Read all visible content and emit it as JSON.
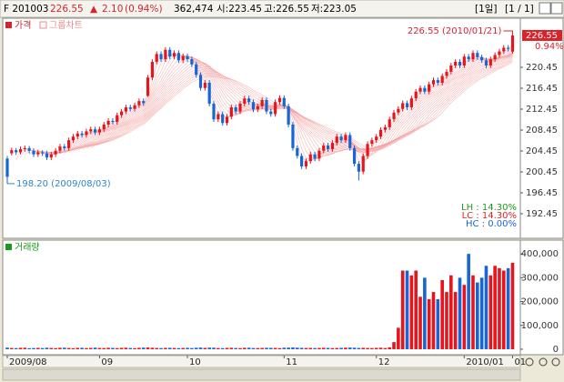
{
  "header": {
    "code": "F 201003",
    "price": "226.55",
    "change_arrow": "▲",
    "change": "2.10",
    "change_pct": "(0.94%)",
    "volume": "362,474",
    "open": "시:223.45",
    "high": "고:226.55",
    "low": "저:223.05",
    "period": "[1일]",
    "page": "[1 / 1]"
  },
  "chart_data": [
    {
      "type": "candlestick",
      "group_label": "그룹차트",
      "series": [
        {
          "name": "가격",
          "up_color": "#e8141b",
          "down_color": "#1666d6",
          "open": [
            203.0,
            204.0,
            204.6,
            204.2,
            204.8,
            205.0,
            204.5,
            203.8,
            204.2,
            204.0,
            203.2,
            203.8,
            204.5,
            205.3,
            205.0,
            206.5,
            207.2,
            207.8,
            207.5,
            208.2,
            208.6,
            208.0,
            208.6,
            209.5,
            210.2,
            210.0,
            211.3,
            212.0,
            212.8,
            212.5,
            213.2,
            214.0,
            215.0,
            218.5,
            221.5,
            223.0,
            222.0,
            223.8,
            222.5,
            223.2,
            221.8,
            222.6,
            222.0,
            221.0,
            219.0,
            216.5,
            217.5,
            213.5,
            210.5,
            211.5,
            209.8,
            211.0,
            212.8,
            212.0,
            213.5,
            214.5,
            213.8,
            212.4,
            213.0,
            214.2,
            212.0,
            211.5,
            213.8,
            214.6,
            213.0,
            209.5,
            205.0,
            203.5,
            201.5,
            202.5,
            203.8,
            203.0,
            204.5,
            205.5,
            204.8,
            206.0,
            207.2,
            206.5,
            207.5,
            205.0,
            202.0,
            200.5,
            203.5,
            205.8,
            206.5,
            207.2,
            208.5,
            209.0,
            210.5,
            211.8,
            212.5,
            213.6,
            212.8,
            214.5,
            215.8,
            216.5,
            215.8,
            217.2,
            218.0,
            217.5,
            218.8,
            219.6,
            220.8,
            221.5,
            220.8,
            222.5,
            222.0,
            223.2,
            222.4,
            221.8,
            220.8,
            222.0,
            222.8,
            223.5,
            224.2,
            223.45
          ],
          "high": [
            203.5,
            205.1,
            205.0,
            205.3,
            205.5,
            205.4,
            205.0,
            204.7,
            204.6,
            204.5,
            204.3,
            205.0,
            205.8,
            205.8,
            207.0,
            207.7,
            208.3,
            208.3,
            208.7,
            209.1,
            209.1,
            209.1,
            210.0,
            210.7,
            210.7,
            211.8,
            212.5,
            213.3,
            213.3,
            213.7,
            214.5,
            214.5,
            219.0,
            222.0,
            223.5,
            223.5,
            224.3,
            224.3,
            223.7,
            223.7,
            223.1,
            223.1,
            222.5,
            221.5,
            219.5,
            218.0,
            218.0,
            214.0,
            212.0,
            212.0,
            211.5,
            213.3,
            213.3,
            214.0,
            215.0,
            215.0,
            214.3,
            213.5,
            214.7,
            214.7,
            212.5,
            214.3,
            215.1,
            215.1,
            213.5,
            210.0,
            205.5,
            204.0,
            203.0,
            204.3,
            204.3,
            205.0,
            206.0,
            206.0,
            206.5,
            207.7,
            207.7,
            208.0,
            208.0,
            205.5,
            202.5,
            204.0,
            206.3,
            207.0,
            207.7,
            209.0,
            209.5,
            211.0,
            212.3,
            213.0,
            214.1,
            214.1,
            215.0,
            216.3,
            217.0,
            217.0,
            217.7,
            218.5,
            218.5,
            219.3,
            220.1,
            221.3,
            222.0,
            222.0,
            223.0,
            223.0,
            223.7,
            223.7,
            222.9,
            222.3,
            222.5,
            223.3,
            224.0,
            224.7,
            224.7,
            226.55
          ],
          "low": [
            198.2,
            203.6,
            203.7,
            203.8,
            204.3,
            204.0,
            203.3,
            203.3,
            203.5,
            202.7,
            202.7,
            203.3,
            204.0,
            204.5,
            204.5,
            206.0,
            206.7,
            207.0,
            207.0,
            207.7,
            207.5,
            207.5,
            208.1,
            209.0,
            209.5,
            209.5,
            210.8,
            211.5,
            212.0,
            212.0,
            212.7,
            213.1,
            214.8,
            218.0,
            221.0,
            221.5,
            221.5,
            222.0,
            222.0,
            221.3,
            221.3,
            221.5,
            220.5,
            218.5,
            216.0,
            216.0,
            213.0,
            210.0,
            210.0,
            209.3,
            209.3,
            210.5,
            211.5,
            211.5,
            213.0,
            213.3,
            211.9,
            211.9,
            212.5,
            211.5,
            211.0,
            211.0,
            213.3,
            212.5,
            209.0,
            204.5,
            203.0,
            201.0,
            201.0,
            202.0,
            202.5,
            202.5,
            204.0,
            204.3,
            204.3,
            205.5,
            206.0,
            206.0,
            204.5,
            201.5,
            198.8,
            200.0,
            203.0,
            205.3,
            206.0,
            206.7,
            208.0,
            208.5,
            210.0,
            211.3,
            212.0,
            212.3,
            212.3,
            214.0,
            215.3,
            215.3,
            215.3,
            216.7,
            217.0,
            217.0,
            218.3,
            219.1,
            220.3,
            220.3,
            220.3,
            221.5,
            221.5,
            221.9,
            221.3,
            220.3,
            220.3,
            221.5,
            222.3,
            223.0,
            223.5,
            223.05
          ],
          "close": [
            199.5,
            204.6,
            204.2,
            204.8,
            205.0,
            204.5,
            203.8,
            204.2,
            204.0,
            203.2,
            203.8,
            204.5,
            205.3,
            205.0,
            206.5,
            207.2,
            207.8,
            207.5,
            208.2,
            208.6,
            208.0,
            208.6,
            209.5,
            210.2,
            210.0,
            211.3,
            212.0,
            212.8,
            212.5,
            213.2,
            214.0,
            213.6,
            218.5,
            221.5,
            223.0,
            222.0,
            223.8,
            222.5,
            223.2,
            221.8,
            222.6,
            222.0,
            221.0,
            219.0,
            216.5,
            217.5,
            213.5,
            210.5,
            211.5,
            209.8,
            211.0,
            212.8,
            212.0,
            213.5,
            214.5,
            213.8,
            212.4,
            213.0,
            214.2,
            212.0,
            211.5,
            213.8,
            214.6,
            213.0,
            209.5,
            205.0,
            203.5,
            201.5,
            202.5,
            203.8,
            203.0,
            204.5,
            205.5,
            204.8,
            206.0,
            207.2,
            206.5,
            207.5,
            205.0,
            202.0,
            200.5,
            203.5,
            205.8,
            206.5,
            207.2,
            208.5,
            209.0,
            210.5,
            211.8,
            212.5,
            213.6,
            212.8,
            214.5,
            215.8,
            216.5,
            215.8,
            217.2,
            218.0,
            217.5,
            218.8,
            219.6,
            220.8,
            221.5,
            220.8,
            222.5,
            222.0,
            223.2,
            222.4,
            221.8,
            220.8,
            222.0,
            222.8,
            223.5,
            224.2,
            224.0,
            226.55
          ]
        }
      ],
      "ylim": [
        187.75,
        229.5
      ],
      "yticks": [
        192.45,
        196.45,
        200.45,
        204.45,
        208.45,
        212.45,
        216.45,
        220.45
      ],
      "current_price": 226.55,
      "current_change": "0.94%",
      "annotations": [
        {
          "label": "226.55 (2010/01/21)",
          "value": 226.55,
          "color": "#d9232a"
        },
        {
          "label": "198.20 (2009/08/03)",
          "value": 198.2,
          "color": "#2f86c8"
        }
      ],
      "stats": [
        {
          "label": "LH : 14.30%",
          "color": "#1a9a1a"
        },
        {
          "label": "LC : 14.30%",
          "color": "#d9232a"
        },
        {
          "label": "HC :  0.00%",
          "color": "#1666d6"
        }
      ]
    },
    {
      "type": "bar",
      "categories": [
        "2009/08",
        null,
        null,
        null,
        null,
        null,
        null,
        null,
        null,
        null,
        null,
        null,
        null,
        null,
        null,
        null,
        null,
        null,
        null,
        null,
        null,
        "09",
        null,
        null,
        null,
        null,
        null,
        null,
        null,
        null,
        null,
        null,
        null,
        null,
        null,
        null,
        null,
        null,
        null,
        null,
        null,
        "10",
        null,
        null,
        null,
        null,
        null,
        null,
        null,
        null,
        null,
        null,
        null,
        null,
        null,
        null,
        null,
        null,
        null,
        null,
        null,
        null,
        null,
        "11",
        null,
        null,
        null,
        null,
        null,
        null,
        null,
        null,
        null,
        null,
        null,
        null,
        null,
        null,
        null,
        null,
        null,
        null,
        null,
        null,
        "12",
        null,
        null,
        null,
        null,
        null,
        null,
        null,
        null,
        null,
        null,
        null,
        null,
        null,
        null,
        null,
        null,
        null,
        null,
        null,
        "2010/01",
        null,
        null,
        null,
        null,
        null,
        null,
        null,
        null,
        null,
        null,
        "01"
      ],
      "series": [
        {
          "name": "거래량",
          "color": "#1a9a1a",
          "values": [
            6800,
            5200,
            4700,
            5900,
            6100,
            4300,
            5000,
            5600,
            4900,
            6200,
            5300,
            4600,
            5800,
            6400,
            5100,
            4400,
            5700,
            6000,
            4800,
            5400,
            6600,
            5200,
            4900,
            6100,
            5500,
            4700,
            5800,
            6300,
            5000,
            4500,
            5900,
            6700,
            7200,
            6100,
            5400,
            4800,
            5600,
            6000,
            5100,
            4700,
            5300,
            5800,
            4900,
            6200,
            7000,
            5600,
            6800,
            6400,
            5100,
            4700,
            5500,
            6000,
            5200,
            4600,
            5900,
            6300,
            5000,
            4800,
            5400,
            6100,
            5700,
            5300,
            4900,
            6200,
            6900,
            7400,
            6500,
            5800,
            5200,
            5600,
            4900,
            5300,
            6000,
            5500,
            4700,
            5100,
            5800,
            6600,
            7100,
            6300,
            5400,
            5900,
            5200,
            4800,
            5600,
            6200,
            5000,
            8000,
            30000,
            90000,
            330000,
            330000,
            310000,
            330000,
            220000,
            300000,
            210000,
            240000,
            210000,
            290000,
            240000,
            310000,
            240000,
            300000,
            270000,
            400000,
            310000,
            280000,
            300000,
            350000,
            310000,
            350000,
            340000,
            330000,
            340000,
            362474
          ]
        }
      ],
      "ylim": [
        -23000,
        454000
      ],
      "yticks": [
        0,
        {
          "value": 100000,
          "label": "100,000"
        },
        {
          "value": 200000,
          "label": "200,000"
        },
        {
          "value": 300000,
          "label": "300,000"
        },
        {
          "value": 400000,
          "label": "400,000"
        }
      ]
    }
  ]
}
